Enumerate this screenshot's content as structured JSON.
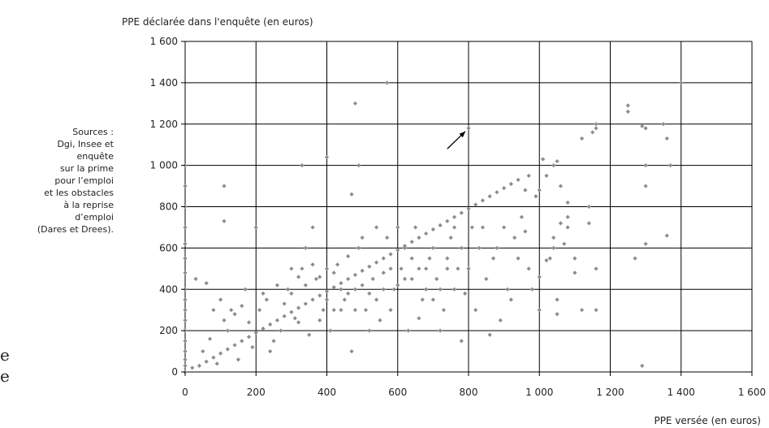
{
  "chart_data": {
    "type": "scatter",
    "ylabel": "PPE déclarée dans l'enquête (en euros)",
    "xlabel": "PPE versée (en euros)",
    "xlim": [
      0,
      1600
    ],
    "ylim": [
      0,
      1600
    ],
    "x_ticks": [
      "0",
      "200",
      "400",
      "600",
      "800",
      "1 000",
      "1 200",
      "1 400",
      "1 600"
    ],
    "y_ticks": [
      "0",
      "200",
      "400",
      "600",
      "800",
      "1 000",
      "1 200",
      "1 400",
      "1 600"
    ],
    "grid": true,
    "marker_color": "#8c8c8c",
    "annotation": {
      "type": "arrow",
      "target": {
        "x": 800,
        "y": 1180
      },
      "from": {
        "x": 740,
        "y": 1080
      }
    },
    "points": [
      {
        "x": 0,
        "y": 0
      },
      {
        "x": 0,
        "y": 30
      },
      {
        "x": 0,
        "y": 60
      },
      {
        "x": 0,
        "y": 100
      },
      {
        "x": 0,
        "y": 150
      },
      {
        "x": 0,
        "y": 200
      },
      {
        "x": 0,
        "y": 250
      },
      {
        "x": 0,
        "y": 300
      },
      {
        "x": 0,
        "y": 350
      },
      {
        "x": 0,
        "y": 400
      },
      {
        "x": 0,
        "y": 480
      },
      {
        "x": 0,
        "y": 550
      },
      {
        "x": 0,
        "y": 620
      },
      {
        "x": 0,
        "y": 700
      },
      {
        "x": 0,
        "y": 800
      },
      {
        "x": 0,
        "y": 900
      },
      {
        "x": 0,
        "y": 1000
      },
      {
        "x": 20,
        "y": 20
      },
      {
        "x": 40,
        "y": 30
      },
      {
        "x": 60,
        "y": 50
      },
      {
        "x": 80,
        "y": 70
      },
      {
        "x": 100,
        "y": 90
      },
      {
        "x": 120,
        "y": 110
      },
      {
        "x": 140,
        "y": 130
      },
      {
        "x": 160,
        "y": 150
      },
      {
        "x": 180,
        "y": 170
      },
      {
        "x": 200,
        "y": 190
      },
      {
        "x": 220,
        "y": 210
      },
      {
        "x": 240,
        "y": 230
      },
      {
        "x": 260,
        "y": 250
      },
      {
        "x": 280,
        "y": 270
      },
      {
        "x": 300,
        "y": 290
      },
      {
        "x": 320,
        "y": 310
      },
      {
        "x": 340,
        "y": 330
      },
      {
        "x": 360,
        "y": 350
      },
      {
        "x": 380,
        "y": 370
      },
      {
        "x": 400,
        "y": 390
      },
      {
        "x": 420,
        "y": 410
      },
      {
        "x": 440,
        "y": 430
      },
      {
        "x": 460,
        "y": 450
      },
      {
        "x": 480,
        "y": 470
      },
      {
        "x": 500,
        "y": 490
      },
      {
        "x": 520,
        "y": 510
      },
      {
        "x": 540,
        "y": 530
      },
      {
        "x": 560,
        "y": 550
      },
      {
        "x": 580,
        "y": 570
      },
      {
        "x": 600,
        "y": 590
      },
      {
        "x": 620,
        "y": 610
      },
      {
        "x": 640,
        "y": 630
      },
      {
        "x": 660,
        "y": 650
      },
      {
        "x": 680,
        "y": 670
      },
      {
        "x": 700,
        "y": 690
      },
      {
        "x": 720,
        "y": 710
      },
      {
        "x": 740,
        "y": 730
      },
      {
        "x": 760,
        "y": 750
      },
      {
        "x": 780,
        "y": 770
      },
      {
        "x": 800,
        "y": 790
      },
      {
        "x": 820,
        "y": 810
      },
      {
        "x": 840,
        "y": 830
      },
      {
        "x": 860,
        "y": 850
      },
      {
        "x": 880,
        "y": 870
      },
      {
        "x": 900,
        "y": 890
      },
      {
        "x": 920,
        "y": 910
      },
      {
        "x": 940,
        "y": 930
      },
      {
        "x": 50,
        "y": 100
      },
      {
        "x": 70,
        "y": 160
      },
      {
        "x": 90,
        "y": 40
      },
      {
        "x": 110,
        "y": 250
      },
      {
        "x": 130,
        "y": 300
      },
      {
        "x": 150,
        "y": 60
      },
      {
        "x": 170,
        "y": 400
      },
      {
        "x": 190,
        "y": 120
      },
      {
        "x": 210,
        "y": 300
      },
      {
        "x": 230,
        "y": 350
      },
      {
        "x": 250,
        "y": 150
      },
      {
        "x": 270,
        "y": 200
      },
      {
        "x": 290,
        "y": 400
      },
      {
        "x": 310,
        "y": 260
      },
      {
        "x": 330,
        "y": 500
      },
      {
        "x": 350,
        "y": 180
      },
      {
        "x": 370,
        "y": 450
      },
      {
        "x": 390,
        "y": 300
      },
      {
        "x": 410,
        "y": 200
      },
      {
        "x": 430,
        "y": 520
      },
      {
        "x": 450,
        "y": 350
      },
      {
        "x": 470,
        "y": 100
      },
      {
        "x": 490,
        "y": 600
      },
      {
        "x": 510,
        "y": 300
      },
      {
        "x": 530,
        "y": 450
      },
      {
        "x": 550,
        "y": 250
      },
      {
        "x": 570,
        "y": 650
      },
      {
        "x": 590,
        "y": 400
      },
      {
        "x": 610,
        "y": 500
      },
      {
        "x": 630,
        "y": 200
      },
      {
        "x": 650,
        "y": 700
      },
      {
        "x": 670,
        "y": 350
      },
      {
        "x": 690,
        "y": 550
      },
      {
        "x": 710,
        "y": 450
      },
      {
        "x": 730,
        "y": 300
      },
      {
        "x": 750,
        "y": 650
      },
      {
        "x": 770,
        "y": 500
      },
      {
        "x": 790,
        "y": 380
      },
      {
        "x": 810,
        "y": 700
      },
      {
        "x": 830,
        "y": 600
      },
      {
        "x": 850,
        "y": 450
      },
      {
        "x": 870,
        "y": 550
      },
      {
        "x": 890,
        "y": 250
      },
      {
        "x": 910,
        "y": 400
      },
      {
        "x": 930,
        "y": 650
      },
      {
        "x": 950,
        "y": 750
      },
      {
        "x": 970,
        "y": 500
      },
      {
        "x": 990,
        "y": 850
      },
      {
        "x": 30,
        "y": 450
      },
      {
        "x": 60,
        "y": 430
      },
      {
        "x": 80,
        "y": 300
      },
      {
        "x": 100,
        "y": 350
      },
      {
        "x": 120,
        "y": 200
      },
      {
        "x": 140,
        "y": 280
      },
      {
        "x": 160,
        "y": 320
      },
      {
        "x": 180,
        "y": 240
      },
      {
        "x": 200,
        "y": 700
      },
      {
        "x": 220,
        "y": 380
      },
      {
        "x": 240,
        "y": 100
      },
      {
        "x": 260,
        "y": 420
      },
      {
        "x": 280,
        "y": 330
      },
      {
        "x": 300,
        "y": 380
      },
      {
        "x": 320,
        "y": 240
      },
      {
        "x": 340,
        "y": 600
      },
      {
        "x": 360,
        "y": 700
      },
      {
        "x": 380,
        "y": 250
      },
      {
        "x": 400,
        "y": 350
      },
      {
        "x": 420,
        "y": 480
      },
      {
        "x": 440,
        "y": 300
      },
      {
        "x": 460,
        "y": 560
      },
      {
        "x": 480,
        "y": 400
      },
      {
        "x": 500,
        "y": 650
      },
      {
        "x": 520,
        "y": 200
      },
      {
        "x": 540,
        "y": 700
      },
      {
        "x": 560,
        "y": 400
      },
      {
        "x": 580,
        "y": 300
      },
      {
        "x": 600,
        "y": 700
      },
      {
        "x": 620,
        "y": 450
      },
      {
        "x": 640,
        "y": 550
      },
      {
        "x": 660,
        "y": 260
      },
      {
        "x": 680,
        "y": 500
      },
      {
        "x": 700,
        "y": 600
      },
      {
        "x": 720,
        "y": 200
      },
      {
        "x": 740,
        "y": 550
      },
      {
        "x": 760,
        "y": 700
      },
      {
        "x": 780,
        "y": 150
      },
      {
        "x": 800,
        "y": 500
      },
      {
        "x": 820,
        "y": 300
      },
      {
        "x": 840,
        "y": 700
      },
      {
        "x": 860,
        "y": 180
      },
      {
        "x": 880,
        "y": 600
      },
      {
        "x": 900,
        "y": 700
      },
      {
        "x": 920,
        "y": 350
      },
      {
        "x": 940,
        "y": 550
      },
      {
        "x": 300,
        "y": 500
      },
      {
        "x": 320,
        "y": 460
      },
      {
        "x": 340,
        "y": 420
      },
      {
        "x": 360,
        "y": 520
      },
      {
        "x": 380,
        "y": 460
      },
      {
        "x": 400,
        "y": 500
      },
      {
        "x": 420,
        "y": 300
      },
      {
        "x": 440,
        "y": 400
      },
      {
        "x": 460,
        "y": 380
      },
      {
        "x": 480,
        "y": 300
      },
      {
        "x": 500,
        "y": 420
      },
      {
        "x": 520,
        "y": 380
      },
      {
        "x": 540,
        "y": 350
      },
      {
        "x": 560,
        "y": 480
      },
      {
        "x": 580,
        "y": 500
      },
      {
        "x": 600,
        "y": 420
      },
      {
        "x": 620,
        "y": 600
      },
      {
        "x": 640,
        "y": 450
      },
      {
        "x": 660,
        "y": 500
      },
      {
        "x": 680,
        "y": 400
      },
      {
        "x": 700,
        "y": 350
      },
      {
        "x": 720,
        "y": 400
      },
      {
        "x": 740,
        "y": 500
      },
      {
        "x": 760,
        "y": 400
      },
      {
        "x": 780,
        "y": 600
      },
      {
        "x": 110,
        "y": 900
      },
      {
        "x": 110,
        "y": 730
      },
      {
        "x": 330,
        "y": 1000
      },
      {
        "x": 400,
        "y": 1040
      },
      {
        "x": 490,
        "y": 1000
      },
      {
        "x": 470,
        "y": 860
      },
      {
        "x": 480,
        "y": 1300
      },
      {
        "x": 570,
        "y": 1400
      },
      {
        "x": 800,
        "y": 1180
      },
      {
        "x": 1010,
        "y": 1030
      },
      {
        "x": 1040,
        "y": 1000
      },
      {
        "x": 1050,
        "y": 1020
      },
      {
        "x": 1020,
        "y": 950
      },
      {
        "x": 1000,
        "y": 880
      },
      {
        "x": 1060,
        "y": 900
      },
      {
        "x": 1080,
        "y": 820
      },
      {
        "x": 1120,
        "y": 1130
      },
      {
        "x": 1150,
        "y": 1160
      },
      {
        "x": 1160,
        "y": 1200
      },
      {
        "x": 1160,
        "y": 1180
      },
      {
        "x": 1250,
        "y": 1290
      },
      {
        "x": 1250,
        "y": 1260
      },
      {
        "x": 1290,
        "y": 1190
      },
      {
        "x": 1300,
        "y": 1180
      },
      {
        "x": 1350,
        "y": 1200
      },
      {
        "x": 1360,
        "y": 1130
      },
      {
        "x": 1300,
        "y": 1000
      },
      {
        "x": 1300,
        "y": 900
      },
      {
        "x": 1370,
        "y": 1000
      },
      {
        "x": 1400,
        "y": 1400
      },
      {
        "x": 1270,
        "y": 550
      },
      {
        "x": 1300,
        "y": 620
      },
      {
        "x": 1360,
        "y": 660
      },
      {
        "x": 1290,
        "y": 30
      },
      {
        "x": 1040,
        "y": 650
      },
      {
        "x": 1040,
        "y": 600
      },
      {
        "x": 1000,
        "y": 460
      },
      {
        "x": 1020,
        "y": 540
      },
      {
        "x": 1050,
        "y": 350
      },
      {
        "x": 1050,
        "y": 280
      },
      {
        "x": 1060,
        "y": 720
      },
      {
        "x": 1080,
        "y": 700
      },
      {
        "x": 1080,
        "y": 750
      },
      {
        "x": 1100,
        "y": 550
      },
      {
        "x": 1120,
        "y": 300
      },
      {
        "x": 1140,
        "y": 800
      },
      {
        "x": 1160,
        "y": 500
      },
      {
        "x": 1160,
        "y": 300
      },
      {
        "x": 1140,
        "y": 720
      },
      {
        "x": 1100,
        "y": 480
      },
      {
        "x": 1000,
        "y": 300
      },
      {
        "x": 980,
        "y": 400
      },
      {
        "x": 960,
        "y": 880
      },
      {
        "x": 970,
        "y": 950
      },
      {
        "x": 960,
        "y": 680
      },
      {
        "x": 1030,
        "y": 550
      },
      {
        "x": 1070,
        "y": 620
      }
    ]
  },
  "side_text": {
    "sources": [
      "Sources :",
      "Dgi, Insee et",
      "enquête",
      "sur la prime",
      "pour l’emploi",
      "et les obstacles",
      "à la reprise",
      "d’emploi",
      "(Dares et Drees)."
    ],
    "cut_off_lines": [
      "e",
      "e"
    ]
  }
}
